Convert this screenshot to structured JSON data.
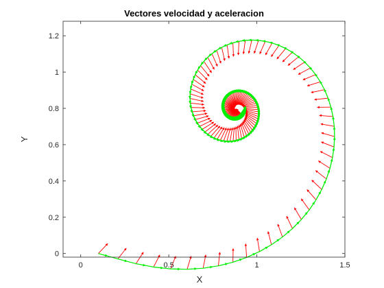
{
  "chart_data": {
    "type": "line",
    "title": "Vectores velocidad y aceleracion",
    "xlabel": "X",
    "ylabel": "Y",
    "xlim": [
      -0.1,
      1.5
    ],
    "ylim": [
      -0.02,
      1.28
    ],
    "xticks": [
      "0",
      "0.5",
      "1",
      "1.5"
    ],
    "xtick_values": [
      0,
      0.5,
      1,
      1.5
    ],
    "yticks": [
      "0",
      "0.2",
      "0.4",
      "0.6",
      "0.8",
      "1",
      "1.2"
    ],
    "ytick_values": [
      0,
      0.2,
      0.4,
      0.6,
      0.8,
      1,
      1.2
    ],
    "grid": false,
    "curve": {
      "kind": "spiral",
      "center": [
        0.88,
        0.8
      ],
      "start": [
        0.1,
        0.0
      ],
      "end_angle_turns": 2.25,
      "final_radius": 0.04
    },
    "series": [
      {
        "color": "#00ee00",
        "values": "tangent (velocity) arrows along spiral"
      },
      {
        "color": "#ff0000",
        "values": "normal (acceleration) arrows pointing to spiral center"
      }
    ],
    "colors": {
      "velocity": "#00ee00",
      "acceleration": "#ff0000",
      "axes": "#262626"
    }
  }
}
